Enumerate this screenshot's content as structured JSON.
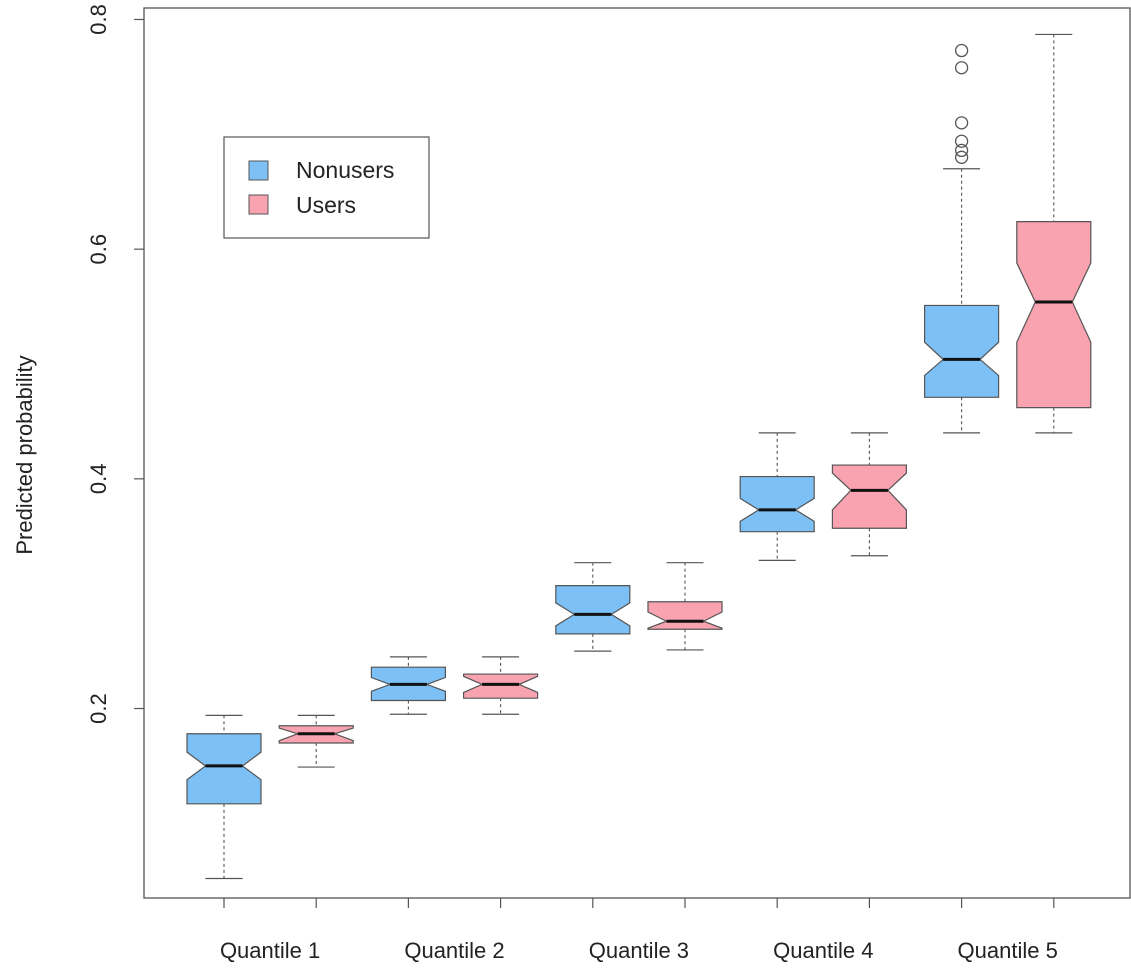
{
  "chart_data": {
    "type": "boxplot",
    "title": "",
    "xlabel": "",
    "ylabel": "Predicted probability",
    "ylim": [
      0.035,
      0.81
    ],
    "yticks": [
      0.2,
      0.4,
      0.6,
      0.8
    ],
    "ytick_labels": [
      "0.2",
      "0.4",
      "0.6",
      "0.8"
    ],
    "categories": [
      "Quantile 1",
      "Quantile 2",
      "Quantile 3",
      "Quantile 4",
      "Quantile 5"
    ],
    "notched": true,
    "grid": false,
    "legend": {
      "placement": "top-left",
      "entries": [
        {
          "name": "Nonusers",
          "color": "#7cc0f5"
        },
        {
          "name": "Users",
          "color": "#f9a3b1"
        }
      ]
    },
    "series": [
      {
        "name": "Nonusers",
        "color": "#7cc0f5",
        "boxes": [
          {
            "category": "Quantile 1",
            "whisker_low": 0.052,
            "q1": 0.117,
            "median": 0.15,
            "q3": 0.178,
            "whisker_high": 0.194,
            "notch_low": 0.138,
            "notch_high": 0.162,
            "outliers": []
          },
          {
            "category": "Quantile 2",
            "whisker_low": 0.195,
            "q1": 0.207,
            "median": 0.221,
            "q3": 0.236,
            "whisker_high": 0.245,
            "notch_low": 0.215,
            "notch_high": 0.227,
            "outliers": []
          },
          {
            "category": "Quantile 3",
            "whisker_low": 0.25,
            "q1": 0.265,
            "median": 0.282,
            "q3": 0.307,
            "whisker_high": 0.327,
            "notch_low": 0.272,
            "notch_high": 0.292,
            "outliers": []
          },
          {
            "category": "Quantile 4",
            "whisker_low": 0.329,
            "q1": 0.354,
            "median": 0.373,
            "q3": 0.402,
            "whisker_high": 0.44,
            "notch_low": 0.363,
            "notch_high": 0.383,
            "outliers": []
          },
          {
            "category": "Quantile 5",
            "whisker_low": 0.44,
            "q1": 0.471,
            "median": 0.504,
            "q3": 0.551,
            "whisker_high": 0.67,
            "notch_low": 0.49,
            "notch_high": 0.519,
            "outliers": [
              0.68,
              0.686,
              0.694,
              0.71,
              0.758,
              0.773
            ]
          }
        ]
      },
      {
        "name": "Users",
        "color": "#f9a3b1",
        "boxes": [
          {
            "category": "Quantile 1",
            "whisker_low": 0.149,
            "q1": 0.17,
            "median": 0.178,
            "q3": 0.185,
            "whisker_high": 0.194,
            "notch_low": 0.172,
            "notch_high": 0.183,
            "outliers": []
          },
          {
            "category": "Quantile 2",
            "whisker_low": 0.195,
            "q1": 0.209,
            "median": 0.221,
            "q3": 0.23,
            "whisker_high": 0.245,
            "notch_low": 0.214,
            "notch_high": 0.228,
            "outliers": []
          },
          {
            "category": "Quantile 3",
            "whisker_low": 0.251,
            "q1": 0.269,
            "median": 0.276,
            "q3": 0.293,
            "whisker_high": 0.327,
            "notch_low": 0.27,
            "notch_high": 0.284,
            "outliers": []
          },
          {
            "category": "Quantile 4",
            "whisker_low": 0.333,
            "q1": 0.357,
            "median": 0.39,
            "q3": 0.412,
            "whisker_high": 0.44,
            "notch_low": 0.373,
            "notch_high": 0.405,
            "outliers": []
          },
          {
            "category": "Quantile 5",
            "whisker_low": 0.44,
            "q1": 0.462,
            "median": 0.554,
            "q3": 0.624,
            "whisker_high": 0.787,
            "notch_low": 0.519,
            "notch_high": 0.588,
            "outliers": []
          }
        ]
      }
    ]
  }
}
